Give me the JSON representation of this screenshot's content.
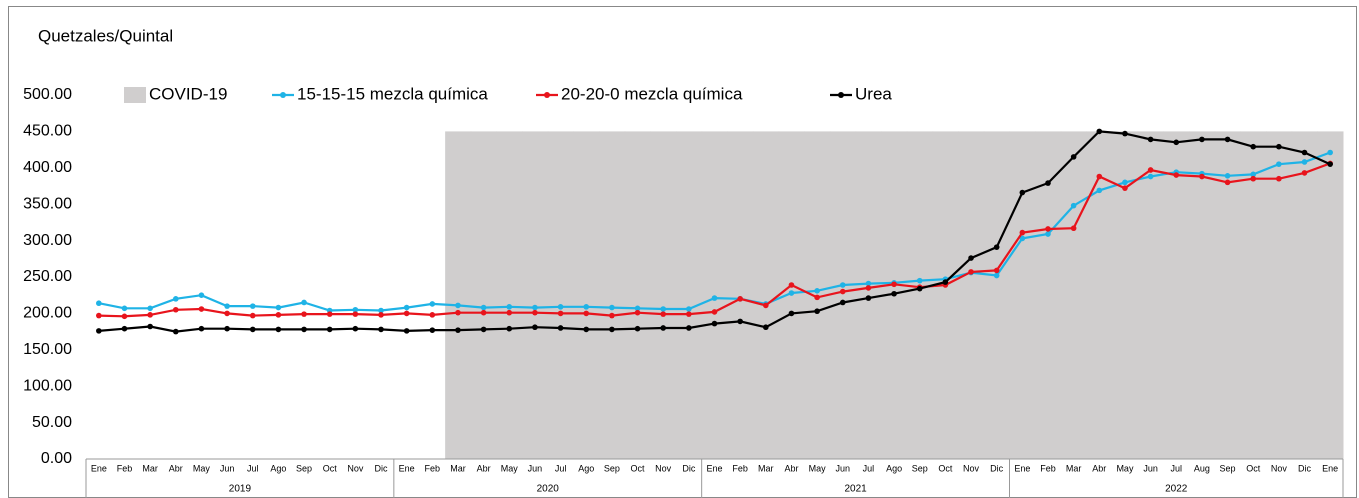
{
  "chart_data": {
    "type": "line",
    "title": "Quetzales/Quintal",
    "categories": [
      "Ene",
      "Feb",
      "Mar",
      "Abr",
      "May",
      "Jun",
      "Jul",
      "Ago",
      "Sep",
      "Oct",
      "Nov",
      "Dic",
      "Ene",
      "Feb",
      "Mar",
      "Abr",
      "May",
      "Jun",
      "Jul",
      "Ago",
      "Sep",
      "Oct",
      "Nov",
      "Dic",
      "Ene",
      "Feb",
      "Mar",
      "Abr",
      "May",
      "Jun",
      "Jul",
      "Ago",
      "Sep",
      "Oct",
      "Nov",
      "Dic",
      "Ene",
      "Feb",
      "Mar",
      "Abr",
      "May",
      "Jun",
      "Jul",
      "Aug",
      "Sep",
      "Oct",
      "Nov",
      "Dic",
      "Ene"
    ],
    "category_groups": [
      {
        "label": "2019",
        "size": 12
      },
      {
        "label": "2020",
        "size": 12
      },
      {
        "label": "2021",
        "size": 12
      },
      {
        "label": "2022",
        "size": 13
      }
    ],
    "series": [
      {
        "name": "COVID-19",
        "kind": "area",
        "color": "#d0cece",
        "values": [
          null,
          null,
          null,
          null,
          null,
          null,
          null,
          null,
          null,
          null,
          null,
          null,
          null,
          null,
          450,
          450,
          450,
          450,
          450,
          450,
          450,
          450,
          450,
          450,
          450,
          450,
          450,
          450,
          450,
          450,
          450,
          450,
          450,
          450,
          450,
          450,
          450,
          450,
          450,
          450,
          450,
          450,
          450,
          450,
          450,
          450,
          450,
          450,
          450
        ]
      },
      {
        "name": "15-15-15 mezcla química",
        "kind": "line",
        "color": "#1fb3e6",
        "values": [
          214,
          207,
          207,
          220,
          225,
          210,
          210,
          208,
          215,
          204,
          205,
          204,
          208,
          213,
          211,
          208,
          209,
          208,
          209,
          209,
          208,
          207,
          206,
          206,
          221,
          220,
          213,
          228,
          231,
          239,
          241,
          242,
          245,
          247,
          256,
          252,
          303,
          309,
          348,
          369,
          380,
          388,
          394,
          392,
          389,
          391,
          405,
          408,
          421
        ]
      },
      {
        "name": "20-20-0 mezcla química",
        "kind": "line",
        "color": "#e8141c",
        "values": [
          197,
          196,
          198,
          205,
          206,
          200,
          197,
          198,
          199,
          199,
          199,
          198,
          200,
          198,
          201,
          201,
          201,
          201,
          200,
          200,
          197,
          201,
          199,
          199,
          202,
          220,
          211,
          239,
          222,
          230,
          235,
          240,
          236,
          239,
          257,
          259,
          311,
          316,
          317,
          388,
          372,
          397,
          390,
          388,
          380,
          385,
          385,
          393,
          406
        ]
      },
      {
        "name": "Urea",
        "kind": "line",
        "color": "#000000",
        "values": [
          176,
          179,
          182,
          175,
          179,
          179,
          178,
          178,
          178,
          178,
          179,
          178,
          176,
          177,
          177,
          178,
          179,
          181,
          180,
          178,
          178,
          179,
          180,
          180,
          186,
          189,
          181,
          200,
          203,
          215,
          221,
          227,
          234,
          243,
          276,
          291,
          366,
          379,
          415,
          450,
          447,
          439,
          435,
          439,
          439,
          429,
          429,
          421,
          405
        ]
      }
    ],
    "ylim": [
      0,
      500
    ],
    "yticks": [
      {
        "value": 0,
        "label": "0.00"
      },
      {
        "value": 50,
        "label": "50.00"
      },
      {
        "value": 100,
        "label": "100.00"
      },
      {
        "value": 150,
        "label": "150.00"
      },
      {
        "value": 200,
        "label": "200.00"
      },
      {
        "value": 250,
        "label": "250.00"
      },
      {
        "value": 300,
        "label": "300.00"
      },
      {
        "value": 350,
        "label": "350.00"
      },
      {
        "value": 400,
        "label": "400.00"
      },
      {
        "value": 450,
        "label": "450.00"
      },
      {
        "value": 500,
        "label": "500.00"
      }
    ],
    "grid": false
  }
}
